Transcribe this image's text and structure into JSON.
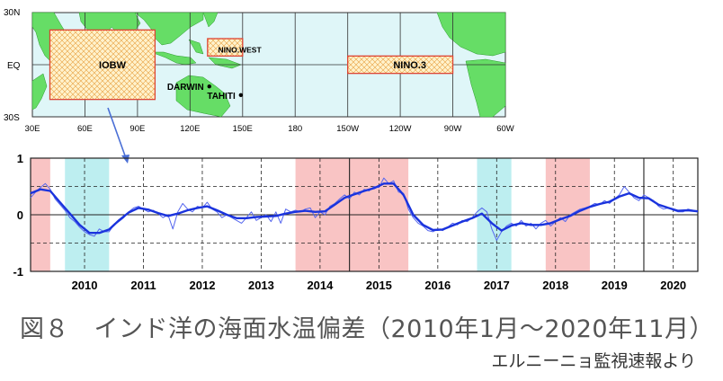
{
  "caption": "図８　インド洋の海面水温偏差（2010年1月～2020年11月）",
  "source": "エルニーニョ監視速報より",
  "map": {
    "lat_labels": [
      "30N",
      "EQ",
      "30S"
    ],
    "lon_labels": [
      "30E",
      "60E",
      "90E",
      "120E",
      "150E",
      "180",
      "150W",
      "120W",
      "90W",
      "60W"
    ],
    "lon_range": [
      30,
      300
    ],
    "lat_range": [
      -30,
      30
    ],
    "regions": [
      {
        "name": "IOBW",
        "lon": [
          40,
          100
        ],
        "lat": [
          -20,
          20
        ],
        "label_lon": 68,
        "label_lat": 0
      },
      {
        "name": "NINO.WEST",
        "lon": [
          130,
          150
        ],
        "lat": [
          5,
          15
        ],
        "label_lon": 136,
        "label_lat": 9
      },
      {
        "name": "NINO.3",
        "lon": [
          210,
          270
        ],
        "lat": [
          -5,
          5
        ],
        "label_lon": 236,
        "label_lat": 0
      }
    ],
    "stations": [
      {
        "name": "DARWIN",
        "lon": 131,
        "lat": -12.5
      },
      {
        "name": "TAHITI",
        "lon": 149,
        "lat": -17.5
      }
    ],
    "colors": {
      "ocean": "#dff6f8",
      "land": "#66dd66",
      "region": "#dd4433",
      "grid": "#333333"
    }
  },
  "chart_data": {
    "type": "line",
    "title": "",
    "xlabel": "",
    "ylabel": "",
    "xlim": [
      2009.583,
      2020.917
    ],
    "ylim": [
      -1,
      1
    ],
    "yticks": [
      1,
      0,
      -1
    ],
    "xticks": [
      "2010",
      "2011",
      "2012",
      "2013",
      "2014",
      "2015",
      "2016",
      "2017",
      "2018",
      "2019",
      "2020"
    ],
    "grid": true,
    "shading": [
      {
        "start": 2009.583,
        "end": 2009.917,
        "color": "#f9c4c4"
      },
      {
        "start": 2010.167,
        "end": 2010.917,
        "color": "#bdeef0"
      },
      {
        "start": 2014.083,
        "end": 2016.0,
        "color": "#f9c4c4"
      },
      {
        "start": 2017.167,
        "end": 2017.75,
        "color": "#bdeef0"
      },
      {
        "start": 2018.333,
        "end": 2019.083,
        "color": "#f9c4c4"
      }
    ],
    "series": [
      {
        "role": "monthly",
        "color": "#5566ee",
        "points": [
          [
            2009.583,
            0.3
          ],
          [
            2009.667,
            0.4
          ],
          [
            2009.75,
            0.48
          ],
          [
            2009.833,
            0.55
          ],
          [
            2009.917,
            0.45
          ],
          [
            2010.0,
            0.28
          ],
          [
            2010.083,
            0.18
          ],
          [
            2010.167,
            0.08
          ],
          [
            2010.25,
            -0.05
          ],
          [
            2010.333,
            -0.12
          ],
          [
            2010.417,
            -0.22
          ],
          [
            2010.5,
            -0.3
          ],
          [
            2010.583,
            -0.35
          ],
          [
            2010.667,
            -0.38
          ],
          [
            2010.75,
            -0.25
          ],
          [
            2010.833,
            -0.3
          ],
          [
            2010.917,
            -0.3
          ],
          [
            2011.0,
            -0.18
          ],
          [
            2011.083,
            -0.12
          ],
          [
            2011.167,
            -0.05
          ],
          [
            2011.25,
            0.05
          ],
          [
            2011.333,
            0.12
          ],
          [
            2011.417,
            0.15
          ],
          [
            2011.5,
            0.1
          ],
          [
            2011.583,
            0.05
          ],
          [
            2011.667,
            0.08
          ],
          [
            2011.75,
            0.02
          ],
          [
            2011.833,
            -0.05
          ],
          [
            2011.917,
            0.0
          ],
          [
            2012.0,
            -0.25
          ],
          [
            2012.083,
            0.05
          ],
          [
            2012.167,
            0.2
          ],
          [
            2012.25,
            0.1
          ],
          [
            2012.333,
            0.05
          ],
          [
            2012.417,
            0.15
          ],
          [
            2012.5,
            0.12
          ],
          [
            2012.583,
            0.22
          ],
          [
            2012.667,
            0.1
          ],
          [
            2012.75,
            0.05
          ],
          [
            2012.833,
            -0.05
          ],
          [
            2012.917,
            0.0
          ],
          [
            2013.0,
            -0.05
          ],
          [
            2013.083,
            -0.1
          ],
          [
            2013.167,
            -0.15
          ],
          [
            2013.25,
            -0.05
          ],
          [
            2013.333,
            0.05
          ],
          [
            2013.417,
            -0.1
          ],
          [
            2013.5,
            -0.05
          ],
          [
            2013.583,
            0.0
          ],
          [
            2013.667,
            -0.12
          ],
          [
            2013.75,
            0.05
          ],
          [
            2013.833,
            -0.15
          ],
          [
            2013.917,
            0.1
          ],
          [
            2014.0,
            0.05
          ],
          [
            2014.083,
            0.08
          ],
          [
            2014.167,
            0.05
          ],
          [
            2014.25,
            0.1
          ],
          [
            2014.333,
            0.12
          ],
          [
            2014.417,
            -0.05
          ],
          [
            2014.5,
            0.05
          ],
          [
            2014.583,
            0.0
          ],
          [
            2014.667,
            0.15
          ],
          [
            2014.75,
            0.2
          ],
          [
            2014.833,
            0.28
          ],
          [
            2014.917,
            0.35
          ],
          [
            2015.0,
            0.28
          ],
          [
            2015.083,
            0.4
          ],
          [
            2015.167,
            0.35
          ],
          [
            2015.25,
            0.45
          ],
          [
            2015.333,
            0.42
          ],
          [
            2015.417,
            0.5
          ],
          [
            2015.5,
            0.48
          ],
          [
            2015.583,
            0.65
          ],
          [
            2015.667,
            0.55
          ],
          [
            2015.75,
            0.6
          ],
          [
            2015.833,
            0.4
          ],
          [
            2015.917,
            0.38
          ],
          [
            2016.0,
            0.1
          ],
          [
            2016.083,
            -0.05
          ],
          [
            2016.167,
            -0.15
          ],
          [
            2016.25,
            -0.2
          ],
          [
            2016.333,
            -0.28
          ],
          [
            2016.417,
            -0.3
          ],
          [
            2016.5,
            -0.25
          ],
          [
            2016.583,
            -0.28
          ],
          [
            2016.667,
            -0.22
          ],
          [
            2016.75,
            -0.15
          ],
          [
            2016.833,
            -0.18
          ],
          [
            2016.917,
            -0.1
          ],
          [
            2017.0,
            -0.12
          ],
          [
            2017.083,
            -0.05
          ],
          [
            2017.167,
            0.05
          ],
          [
            2017.25,
            0.12
          ],
          [
            2017.333,
            0.05
          ],
          [
            2017.417,
            -0.25
          ],
          [
            2017.5,
            -0.45
          ],
          [
            2017.583,
            -0.3
          ],
          [
            2017.667,
            -0.2
          ],
          [
            2017.75,
            -0.15
          ],
          [
            2017.833,
            -0.2
          ],
          [
            2017.917,
            -0.1
          ],
          [
            2018.0,
            -0.2
          ],
          [
            2018.083,
            -0.15
          ],
          [
            2018.167,
            -0.25
          ],
          [
            2018.25,
            -0.15
          ],
          [
            2018.333,
            -0.1
          ],
          [
            2018.417,
            -0.2
          ],
          [
            2018.5,
            -0.12
          ],
          [
            2018.583,
            -0.05
          ],
          [
            2018.667,
            -0.12
          ],
          [
            2018.75,
            0.0
          ],
          [
            2018.833,
            0.05
          ],
          [
            2018.917,
            0.1
          ],
          [
            2019.0,
            0.12
          ],
          [
            2019.083,
            0.15
          ],
          [
            2019.167,
            0.2
          ],
          [
            2019.25,
            0.18
          ],
          [
            2019.333,
            0.25
          ],
          [
            2019.417,
            0.2
          ],
          [
            2019.5,
            0.28
          ],
          [
            2019.583,
            0.35
          ],
          [
            2019.667,
            0.5
          ],
          [
            2019.75,
            0.4
          ],
          [
            2019.833,
            0.3
          ],
          [
            2019.917,
            0.25
          ],
          [
            2020.0,
            0.35
          ],
          [
            2020.083,
            0.3
          ],
          [
            2020.167,
            0.25
          ],
          [
            2020.25,
            0.15
          ],
          [
            2020.333,
            0.1
          ],
          [
            2020.417,
            0.12
          ],
          [
            2020.5,
            0.08
          ],
          [
            2020.583,
            0.05
          ],
          [
            2020.667,
            0.05
          ],
          [
            2020.75,
            0.1
          ],
          [
            2020.833,
            0.08
          ],
          [
            2020.917,
            0.05
          ]
        ]
      },
      {
        "role": "running-mean",
        "color": "#1a33dd",
        "points": [
          [
            2009.583,
            0.38
          ],
          [
            2009.75,
            0.45
          ],
          [
            2009.917,
            0.42
          ],
          [
            2010.083,
            0.22
          ],
          [
            2010.25,
            0.02
          ],
          [
            2010.417,
            -0.18
          ],
          [
            2010.583,
            -0.32
          ],
          [
            2010.75,
            -0.32
          ],
          [
            2010.917,
            -0.26
          ],
          [
            2011.083,
            -0.1
          ],
          [
            2011.25,
            0.04
          ],
          [
            2011.417,
            0.12
          ],
          [
            2011.583,
            0.09
          ],
          [
            2011.75,
            0.03
          ],
          [
            2011.917,
            -0.02
          ],
          [
            2012.083,
            0.02
          ],
          [
            2012.25,
            0.08
          ],
          [
            2012.417,
            0.12
          ],
          [
            2012.583,
            0.15
          ],
          [
            2012.75,
            0.08
          ],
          [
            2012.917,
            0.0
          ],
          [
            2013.083,
            -0.06
          ],
          [
            2013.25,
            -0.06
          ],
          [
            2013.417,
            -0.04
          ],
          [
            2013.583,
            -0.03
          ],
          [
            2013.75,
            -0.02
          ],
          [
            2013.917,
            0.02
          ],
          [
            2014.083,
            0.05
          ],
          [
            2014.25,
            0.07
          ],
          [
            2014.417,
            0.05
          ],
          [
            2014.583,
            0.06
          ],
          [
            2014.75,
            0.18
          ],
          [
            2014.917,
            0.3
          ],
          [
            2015.083,
            0.36
          ],
          [
            2015.25,
            0.42
          ],
          [
            2015.417,
            0.47
          ],
          [
            2015.583,
            0.55
          ],
          [
            2015.75,
            0.55
          ],
          [
            2015.917,
            0.35
          ],
          [
            2016.083,
            0.0
          ],
          [
            2016.25,
            -0.18
          ],
          [
            2016.417,
            -0.27
          ],
          [
            2016.583,
            -0.26
          ],
          [
            2016.75,
            -0.19
          ],
          [
            2016.917,
            -0.12
          ],
          [
            2017.083,
            -0.06
          ],
          [
            2017.25,
            0.02
          ],
          [
            2017.417,
            -0.15
          ],
          [
            2017.583,
            -0.28
          ],
          [
            2017.75,
            -0.19
          ],
          [
            2017.917,
            -0.15
          ],
          [
            2018.083,
            -0.18
          ],
          [
            2018.25,
            -0.18
          ],
          [
            2018.417,
            -0.15
          ],
          [
            2018.583,
            -0.08
          ],
          [
            2018.75,
            -0.02
          ],
          [
            2018.917,
            0.07
          ],
          [
            2019.083,
            0.14
          ],
          [
            2019.25,
            0.19
          ],
          [
            2019.417,
            0.23
          ],
          [
            2019.583,
            0.32
          ],
          [
            2019.75,
            0.38
          ],
          [
            2019.917,
            0.3
          ],
          [
            2020.083,
            0.29
          ],
          [
            2020.25,
            0.18
          ],
          [
            2020.417,
            0.12
          ],
          [
            2020.583,
            0.07
          ],
          [
            2020.75,
            0.08
          ],
          [
            2020.917,
            0.06
          ]
        ]
      }
    ]
  }
}
